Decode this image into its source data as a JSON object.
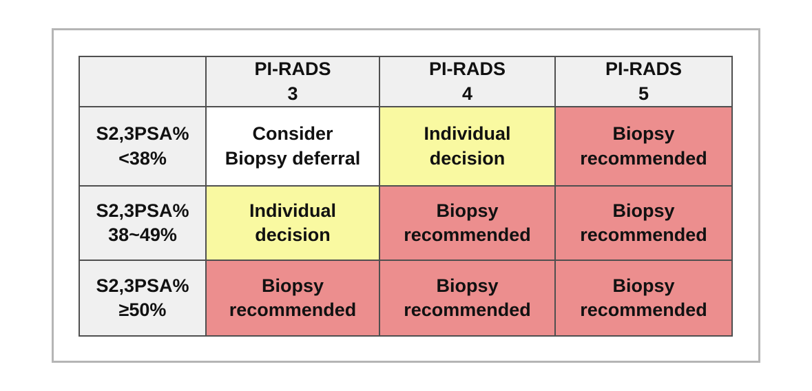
{
  "colors": {
    "header": "#f0f0f0",
    "label": "#f0f0f0",
    "defer": "#ffffff",
    "individual": "#f9f9a1",
    "biopsy": "#ec8e8e",
    "grid": "#4f4f4f",
    "frame": "#b5b5b5",
    "text": "#111111"
  },
  "chart_data": {
    "type": "table",
    "columns": [
      "",
      "PI-RADS 3",
      "PI-RADS 4",
      "PI-RADS 5"
    ],
    "rows": [
      [
        "S2,3PSA% <38%",
        "Consider Biopsy deferral",
        "Individual decision",
        "Biopsy recommended"
      ],
      [
        "S2,3PSA% 38~49%",
        "Individual decision",
        "Biopsy recommended",
        "Biopsy recommended"
      ],
      [
        "S2,3PSA% ≥50%",
        "Biopsy recommended",
        "Biopsy recommended",
        "Biopsy recommended"
      ]
    ],
    "cell_colors": [
      [
        "#f0f0f0",
        "#ffffff",
        "#f9f9a1",
        "#ec8e8e"
      ],
      [
        "#f0f0f0",
        "#f9f9a1",
        "#ec8e8e",
        "#ec8e8e"
      ],
      [
        "#f0f0f0",
        "#ec8e8e",
        "#ec8e8e",
        "#ec8e8e"
      ]
    ],
    "legend_position": "none",
    "grid": true
  },
  "table": {
    "corner": {
      "text": "",
      "status": "header"
    },
    "headers": [
      {
        "text": "PI-RADS\n3",
        "status": "header"
      },
      {
        "text": "PI-RADS\n4",
        "status": "header"
      },
      {
        "text": "PI-RADS\n5",
        "status": "header"
      }
    ],
    "rows": [
      {
        "label": {
          "text": "S2,3PSA%\n<38%",
          "status": "label"
        },
        "cells": [
          {
            "text": "Consider\nBiopsy deferral",
            "status": "defer"
          },
          {
            "text": "Individual\ndecision",
            "status": "individual"
          },
          {
            "text": "Biopsy\nrecommended",
            "status": "biopsy"
          }
        ]
      },
      {
        "label": {
          "text": "S2,3PSA%\n38~49%",
          "status": "label"
        },
        "cells": [
          {
            "text": "Individual\ndecision",
            "status": "individual"
          },
          {
            "text": "Biopsy\nrecommended",
            "status": "biopsy"
          },
          {
            "text": "Biopsy\nrecommended",
            "status": "biopsy"
          }
        ]
      },
      {
        "label": {
          "text": "S2,3PSA%\n≥50%",
          "status": "label"
        },
        "cells": [
          {
            "text": "Biopsy\nrecommended",
            "status": "biopsy"
          },
          {
            "text": "Biopsy\nrecommended",
            "status": "biopsy"
          },
          {
            "text": "Biopsy\nrecommended",
            "status": "biopsy"
          }
        ]
      }
    ]
  }
}
